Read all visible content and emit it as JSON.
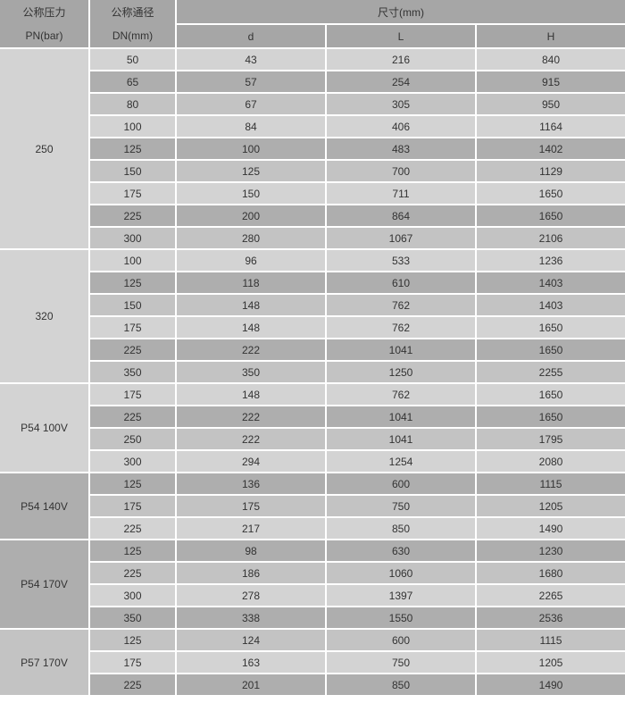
{
  "table": {
    "header": {
      "pressure_line1": "公称压力",
      "pressure_line2": "PN(bar)",
      "diameter_line1": "公称通径",
      "diameter_line2": "DN(mm)",
      "size_span": "尺寸(mm)",
      "sub_cols": [
        "d",
        "L",
        "H"
      ]
    },
    "groups": [
      {
        "pn": "250",
        "shade": "light",
        "rows": [
          [
            "50",
            "43",
            "216",
            "840"
          ],
          [
            "65",
            "57",
            "254",
            "915"
          ],
          [
            "80",
            "67",
            "305",
            "950"
          ],
          [
            "100",
            "84",
            "406",
            "1164"
          ],
          [
            "125",
            "100",
            "483",
            "1402"
          ],
          [
            "150",
            "125",
            "700",
            "1129"
          ],
          [
            "175",
            "150",
            "711",
            "1650"
          ],
          [
            "225",
            "200",
            "864",
            "1650"
          ],
          [
            "300",
            "280",
            "1067",
            "2106"
          ]
        ]
      },
      {
        "pn": "320",
        "shade": "light",
        "rows": [
          [
            "100",
            "96",
            "533",
            "1236"
          ],
          [
            "125",
            "118",
            "610",
            "1403"
          ],
          [
            "150",
            "148",
            "762",
            "1403"
          ],
          [
            "175",
            "148",
            "762",
            "1650"
          ],
          [
            "225",
            "222",
            "1041",
            "1650"
          ],
          [
            "350",
            "350",
            "1250",
            "2255"
          ]
        ]
      },
      {
        "pn": "P54 100V",
        "shade": "light",
        "rows": [
          [
            "175",
            "148",
            "762",
            "1650"
          ],
          [
            "225",
            "222",
            "1041",
            "1650"
          ],
          [
            "250",
            "222",
            "1041",
            "1795"
          ],
          [
            "300",
            "294",
            "1254",
            "2080"
          ]
        ]
      },
      {
        "pn": "P54 140V",
        "shade": "dark",
        "rows": [
          [
            "125",
            "136",
            "600",
            "1115"
          ],
          [
            "175",
            "175",
            "750",
            "1205"
          ],
          [
            "225",
            "217",
            "850",
            "1490"
          ]
        ]
      },
      {
        "pn": "P54 170V",
        "shade": "dark",
        "rows": [
          [
            "125",
            "98",
            "630",
            "1230"
          ],
          [
            "225",
            "186",
            "1060",
            "1680"
          ],
          [
            "300",
            "278",
            "1397",
            "2265"
          ],
          [
            "350",
            "338",
            "1550",
            "2536"
          ]
        ]
      },
      {
        "pn": "P57 170V",
        "shade": "medium",
        "rows": [
          [
            "125",
            "124",
            "600",
            "1115"
          ],
          [
            "175",
            "163",
            "750",
            "1205"
          ],
          [
            "225",
            "201",
            "850",
            "1490"
          ]
        ]
      }
    ],
    "colors": {
      "row_light": "#d3d3d3",
      "row_medium": "#c3c3c3",
      "row_dark": "#aeaeae",
      "header_bg": "#a6a6a6",
      "grid_line": "#ffffff",
      "text": "#333333"
    }
  }
}
